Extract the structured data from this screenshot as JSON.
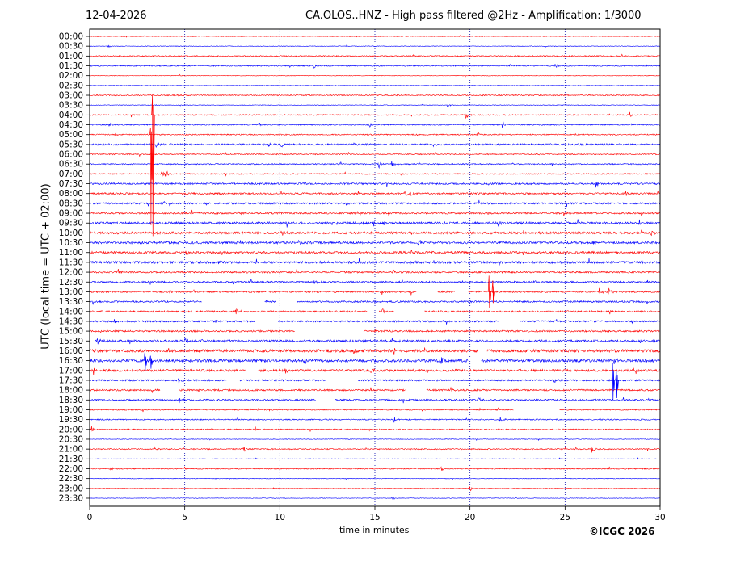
{
  "header": {
    "date": "12-04-2026",
    "title": "CA.OLOS..HNZ - High pass filtered @2Hz - Amplification: 1/3000"
  },
  "footer": {
    "copyright": "©ICGC 2026"
  },
  "colors": {
    "trace_red": "#ff0000",
    "trace_blue": "#0000ff",
    "grid": "#0000aa"
  },
  "chart_data": {
    "type": "line",
    "title": "CA.OLOS..HNZ - High pass filtered @2Hz - Amplification: 1/3000",
    "xlabel": "time in minutes",
    "ylabel": "UTC (local time = UTC + 02:00)",
    "xlim": [
      0,
      30
    ],
    "x_ticks": [
      0,
      5,
      10,
      15,
      20,
      25,
      30
    ],
    "grid": "vertical dotted at 5,10,15,20,25",
    "row_labels": [
      "00:00",
      "00:30",
      "01:00",
      "01:30",
      "02:00",
      "02:30",
      "03:00",
      "03:30",
      "04:00",
      "04:30",
      "05:00",
      "05:30",
      "06:00",
      "06:30",
      "07:00",
      "07:30",
      "08:00",
      "08:30",
      "09:00",
      "09:30",
      "10:00",
      "10:30",
      "11:00",
      "11:30",
      "12:00",
      "12:30",
      "13:00",
      "13:30",
      "14:00",
      "14:30",
      "15:00",
      "15:30",
      "16:00",
      "16:30",
      "17:00",
      "17:30",
      "18:00",
      "18:30",
      "19:00",
      "19:30",
      "20:00",
      "20:30",
      "21:00",
      "21:30",
      "22:00",
      "22:30",
      "23:00",
      "23:30"
    ],
    "row_colors": "alternating red (even rows) / blue (odd rows)",
    "noise_level": [
      1,
      1,
      2,
      2,
      1,
      1,
      2,
      1,
      2,
      2,
      2,
      3,
      2,
      2,
      2,
      3,
      3,
      3,
      3,
      4,
      4,
      4,
      4,
      4,
      3,
      3,
      3,
      3,
      3,
      3,
      3,
      4,
      5,
      5,
      4,
      3,
      3,
      3,
      2,
      2,
      2,
      1,
      2,
      1,
      2,
      1,
      1,
      1
    ],
    "gaps": [
      {
        "row": 26,
        "from": 17.2,
        "to": 18.3
      },
      {
        "row": 26,
        "from": 19.2,
        "to": 19.9
      },
      {
        "row": 27,
        "from": 5.9,
        "to": 9.2
      },
      {
        "row": 27,
        "from": 9.8,
        "to": 10.9
      },
      {
        "row": 28,
        "from": 14.6,
        "to": 15.2
      },
      {
        "row": 28,
        "from": 16.0,
        "to": 17.6
      },
      {
        "row": 29,
        "from": 8.7,
        "to": 9.9
      },
      {
        "row": 29,
        "from": 21.5,
        "to": 22.6
      },
      {
        "row": 30,
        "from": 10.8,
        "to": 14.4
      },
      {
        "row": 31,
        "from": 0.0,
        "to": 0.25
      },
      {
        "row": 32,
        "from": 20.4,
        "to": 20.9
      },
      {
        "row": 33,
        "from": 19.9,
        "to": 20.6
      },
      {
        "row": 34,
        "from": 8.2,
        "to": 8.8
      },
      {
        "row": 35,
        "from": 7.2,
        "to": 7.9
      },
      {
        "row": 35,
        "from": 12.4,
        "to": 14.1
      },
      {
        "row": 36,
        "from": 3.7,
        "to": 4.7
      },
      {
        "row": 36,
        "from": 16.6,
        "to": 17.7
      },
      {
        "row": 37,
        "from": 11.9,
        "to": 12.9
      },
      {
        "row": 38,
        "from": 22.3,
        "to": 24.7
      }
    ],
    "events": [
      {
        "row": 1,
        "t": 1.0,
        "amp": 2
      },
      {
        "row": 3,
        "t": 11.8,
        "amp": 4
      },
      {
        "row": 3,
        "t": 24.5,
        "amp": 4
      },
      {
        "row": 7,
        "t": 18.8,
        "amp": 3
      },
      {
        "row": 8,
        "t": 19.8,
        "amp": 5
      },
      {
        "row": 8,
        "t": 28.4,
        "amp": 4
      },
      {
        "row": 9,
        "t": 1.0,
        "amp": 4
      },
      {
        "row": 9,
        "t": 8.9,
        "amp": 4
      },
      {
        "row": 9,
        "t": 14.7,
        "amp": 4
      },
      {
        "row": 9,
        "t": 21.7,
        "amp": 4
      },
      {
        "row": 10,
        "t": 1.3,
        "amp": 3
      },
      {
        "row": 10,
        "t": 20.4,
        "amp": 3
      },
      {
        "row": 11,
        "t": 3.5,
        "amp": 4
      },
      {
        "row": 11,
        "t": 9.4,
        "amp": 4
      },
      {
        "row": 11,
        "t": 10.1,
        "amp": 5
      },
      {
        "row": 11,
        "t": 13.9,
        "amp": 3
      },
      {
        "row": 13,
        "t": 15.2,
        "amp": 6
      },
      {
        "row": 13,
        "t": 15.9,
        "amp": 5
      },
      {
        "row": 14,
        "t": 3.8,
        "amp": 6
      },
      {
        "row": 14,
        "t": 4.0,
        "amp": 6
      },
      {
        "row": 15,
        "t": 11.2,
        "amp": 4
      },
      {
        "row": 15,
        "t": 26.6,
        "amp": 6
      },
      {
        "row": 16,
        "t": 16.6,
        "amp": 5
      },
      {
        "row": 16,
        "t": 16.9,
        "amp": 4
      },
      {
        "row": 16,
        "t": 28.2,
        "amp": 5
      },
      {
        "row": 17,
        "t": 3.9,
        "amp": 4
      },
      {
        "row": 17,
        "t": 13.5,
        "amp": 4
      },
      {
        "row": 19,
        "t": 14.2,
        "amp": 4
      },
      {
        "row": 19,
        "t": 14.9,
        "amp": 5
      },
      {
        "row": 19,
        "t": 18.6,
        "amp": 4
      },
      {
        "row": 19,
        "t": 21.5,
        "amp": 5
      },
      {
        "row": 19,
        "t": 28.9,
        "amp": 4
      },
      {
        "row": 20,
        "t": 10.1,
        "amp": 4
      },
      {
        "row": 20,
        "t": 16.8,
        "amp": 4
      },
      {
        "row": 20,
        "t": 29.5,
        "amp": 5
      },
      {
        "row": 21,
        "t": 11.0,
        "amp": 4
      },
      {
        "row": 21,
        "t": 17.3,
        "amp": 5
      },
      {
        "row": 21,
        "t": 26.5,
        "amp": 5
      },
      {
        "row": 23,
        "t": 6.8,
        "amp": 3
      },
      {
        "row": 24,
        "t": 1.5,
        "amp": 6
      },
      {
        "row": 24,
        "t": 15.9,
        "amp": 6
      },
      {
        "row": 25,
        "t": 11.8,
        "amp": 3
      },
      {
        "row": 25,
        "t": 23.3,
        "amp": 3
      },
      {
        "row": 26,
        "t": 4.2,
        "amp": 4
      },
      {
        "row": 26,
        "t": 26.8,
        "amp": 6
      },
      {
        "row": 26,
        "t": 27.3,
        "amp": 6
      },
      {
        "row": 27,
        "t": 9.3,
        "amp": 4
      },
      {
        "row": 28,
        "t": 7.7,
        "amp": 6
      },
      {
        "row": 28,
        "t": 15.4,
        "amp": 4
      },
      {
        "row": 29,
        "t": 1.3,
        "amp": 4
      },
      {
        "row": 29,
        "t": 6.6,
        "amp": 4
      },
      {
        "row": 30,
        "t": 23.3,
        "amp": 4
      },
      {
        "row": 31,
        "t": 0.4,
        "amp": 5
      },
      {
        "row": 31,
        "t": 5.0,
        "amp": 5
      },
      {
        "row": 32,
        "t": 13.9,
        "amp": 5
      },
      {
        "row": 32,
        "t": 16.0,
        "amp": 5
      },
      {
        "row": 33,
        "t": 11.3,
        "amp": 6
      },
      {
        "row": 33,
        "t": 18.5,
        "amp": 7
      },
      {
        "row": 33,
        "t": 27.6,
        "amp": 6
      },
      {
        "row": 34,
        "t": 0.2,
        "amp": 5
      },
      {
        "row": 34,
        "t": 10.3,
        "amp": 5
      },
      {
        "row": 34,
        "t": 14.8,
        "amp": 5
      },
      {
        "row": 35,
        "t": 4.7,
        "amp": 5
      },
      {
        "row": 35,
        "t": 24.4,
        "amp": 4
      },
      {
        "row": 36,
        "t": 3.3,
        "amp": 4
      },
      {
        "row": 36,
        "t": 19.0,
        "amp": 4
      },
      {
        "row": 37,
        "t": 4.7,
        "amp": 5
      },
      {
        "row": 37,
        "t": 20.4,
        "amp": 4
      },
      {
        "row": 39,
        "t": 16.0,
        "amp": 5
      },
      {
        "row": 39,
        "t": 21.6,
        "amp": 5
      },
      {
        "row": 40,
        "t": 0.1,
        "amp": 4
      },
      {
        "row": 40,
        "t": 8.7,
        "amp": 4
      },
      {
        "row": 42,
        "t": 3.4,
        "amp": 4
      },
      {
        "row": 42,
        "t": 8.1,
        "amp": 5
      },
      {
        "row": 42,
        "t": 26.4,
        "amp": 5
      },
      {
        "row": 44,
        "t": 1.1,
        "amp": 4
      },
      {
        "row": 44,
        "t": 18.5,
        "amp": 4
      },
      {
        "row": 46,
        "t": 20.0,
        "amp": 4
      },
      {
        "row": 47,
        "t": 15.9,
        "amp": 3
      }
    ],
    "spikes": [
      {
        "row": 8,
        "t": 3.3,
        "up": 24,
        "down": 150,
        "color": "#ff0000"
      },
      {
        "row": 10,
        "t": 3.2,
        "up": 8,
        "down": 112,
        "color": "#ff0000"
      },
      {
        "row": 33,
        "t": 2.9,
        "up": 10,
        "down": 12,
        "color": "#0000ff"
      },
      {
        "row": 33,
        "t": 3.2,
        "up": 6,
        "down": 10,
        "color": "#0000ff"
      },
      {
        "row": 26,
        "t": 21.0,
        "up": 20,
        "down": 20,
        "color": "#ff0000"
      },
      {
        "row": 26,
        "t": 21.2,
        "up": 14,
        "down": 14,
        "color": "#ff0000"
      },
      {
        "row": 35,
        "t": 27.5,
        "up": 22,
        "down": 24,
        "color": "#0000ff"
      },
      {
        "row": 35,
        "t": 27.7,
        "up": 12,
        "down": 22,
        "color": "#0000ff"
      }
    ]
  }
}
